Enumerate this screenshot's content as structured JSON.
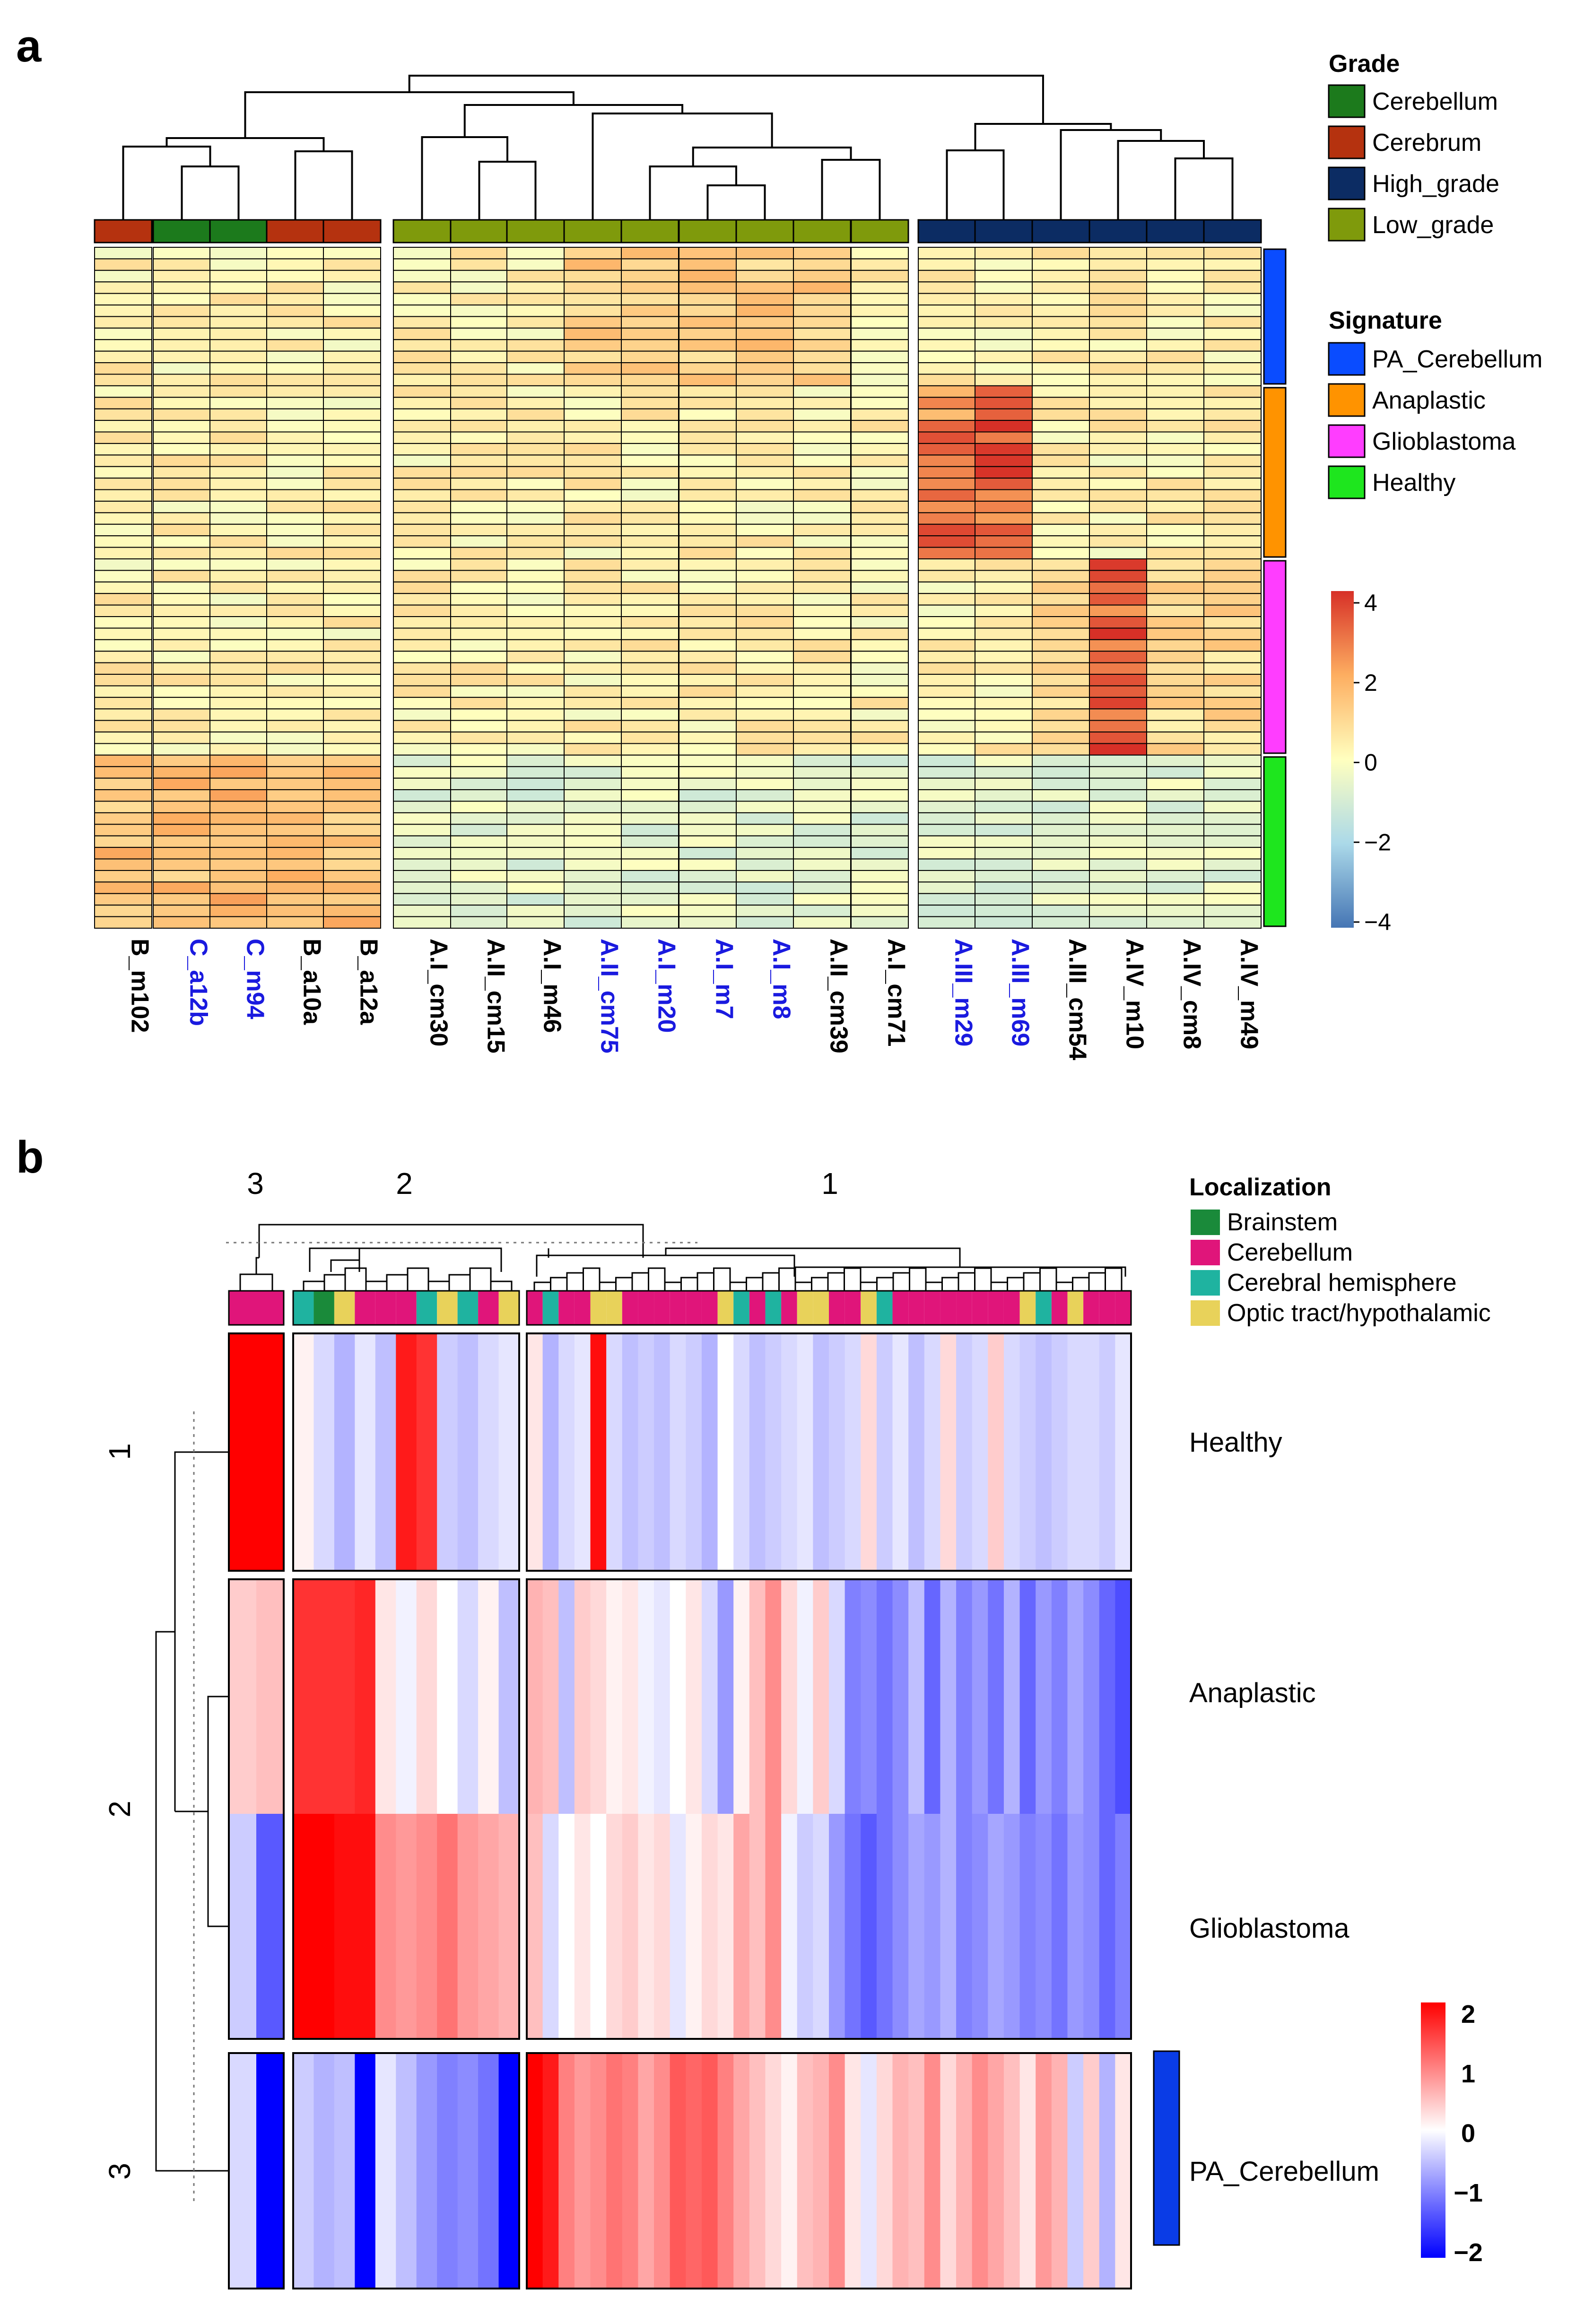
{
  "panel_a": {
    "label": "a",
    "legend": {
      "grade_title": "Grade",
      "grade_items": [
        {
          "name": "Cerebellum",
          "color": "#1c7a1c"
        },
        {
          "name": "Cerebrum",
          "color": "#b5320f"
        },
        {
          "name": "High_grade",
          "color": "#0c2c63"
        },
        {
          "name": "Low_grade",
          "color": "#7f9a0c"
        }
      ],
      "signature_title": "Signature",
      "signature_items": [
        {
          "name": "PA_Cerebellum",
          "color": "#0a4cff"
        },
        {
          "name": "Anaplastic",
          "color": "#ff9300"
        },
        {
          "name": "Glioblastoma",
          "color": "#ff3dff"
        },
        {
          "name": "Healthy",
          "color": "#1ee61e"
        }
      ]
    },
    "scale_ticks": [
      "4",
      "2",
      "0",
      "−2",
      "−4"
    ]
  },
  "panel_b": {
    "label": "b",
    "col_cluster_labels": [
      "3",
      "2",
      "1"
    ],
    "row_cluster_labels": [
      "1",
      "2",
      "3"
    ],
    "legend": {
      "title": "Localization",
      "items": [
        {
          "name": "Brainstem",
          "color": "#1a8a3a"
        },
        {
          "name": "Cerebellum",
          "color": "#e0157a"
        },
        {
          "name": "Cerebral hemisphere",
          "color": "#1fb3a0"
        },
        {
          "name": "Optic tract/hypothalamic",
          "color": "#e8d25a"
        }
      ]
    },
    "scale_ticks": [
      "2",
      "1",
      "0",
      "−1",
      "−2"
    ]
  },
  "chart_data": [
    {
      "type": "heatmap",
      "title": "",
      "columns": [
        "B_m102",
        "C_a12b",
        "C_m94",
        "B_a10a",
        "B_a12a",
        "A.I_cm30",
        "A.II_cm15",
        "A.I_m46",
        "A.II_cm75",
        "A.I_m20",
        "A.I_m7",
        "A.I_m8",
        "A.II_cm39",
        "A.I_cm71",
        "A.III_m29",
        "A.III_m69",
        "A.III_cm54",
        "A.IV_m10",
        "A.IV_cm8",
        "A.IV_m49"
      ],
      "column_label_colors": [
        "#000000",
        "#1a1adf",
        "#1a1adf",
        "#000000",
        "#000000",
        "#000000",
        "#000000",
        "#000000",
        "#1a1adf",
        "#1a1adf",
        "#1a1adf",
        "#1a1adf",
        "#000000",
        "#000000",
        "#1a1adf",
        "#1a1adf",
        "#000000",
        "#000000",
        "#000000",
        "#000000"
      ],
      "column_grade": [
        "Cerebrum",
        "Cerebellum",
        "Cerebellum",
        "Cerebrum",
        "Cerebrum",
        "Low_grade",
        "Low_grade",
        "Low_grade",
        "Low_grade",
        "Low_grade",
        "Low_grade",
        "Low_grade",
        "Low_grade",
        "Low_grade",
        "High_grade",
        "High_grade",
        "High_grade",
        "High_grade",
        "High_grade",
        "High_grade"
      ],
      "column_groups": [
        5,
        9,
        6
      ],
      "row_signature_blocks": [
        {
          "name": "PA_Cerebellum",
          "rows": 12
        },
        {
          "name": "Anaplastic",
          "rows": 15
        },
        {
          "name": "Glioblastoma",
          "rows": 17
        },
        {
          "name": "Healthy",
          "rows": 15
        }
      ],
      "value_range": [
        -4,
        4
      ],
      "colorscale": [
        "#4575b4",
        "#ffffbf",
        "#d73027"
      ],
      "notes": "approximate expression z-scores read from color"
    },
    {
      "type": "heatmap",
      "title": "",
      "rows": [
        "Healthy",
        "Anaplastic",
        "Glioblastoma",
        "PA_Cerebellum"
      ],
      "row_clusters": [
        1,
        2,
        2,
        3
      ],
      "column_clusters": [
        {
          "label": "3",
          "n": 2
        },
        {
          "label": "2",
          "n": 11
        },
        {
          "label": "1",
          "n": 38
        }
      ],
      "value_range": [
        -2,
        2
      ],
      "colorscale": [
        "#0000ff",
        "#ffffff",
        "#ff0000"
      ],
      "values": [
        [
          2.0,
          2.0,
          0.1,
          -0.3,
          -0.6,
          -0.2,
          -0.5,
          1.8,
          1.6,
          -0.4,
          -0.5,
          -0.3,
          -0.2,
          0.2,
          -0.6,
          -0.3,
          -0.2,
          1.9,
          -0.3,
          -0.5,
          -0.4,
          -0.5,
          -0.3,
          -0.4,
          -0.6,
          0.0,
          -0.3,
          -0.5,
          -0.4,
          -0.3,
          -0.2,
          -0.5,
          -0.4,
          -0.3,
          0.3,
          -0.4,
          -0.2,
          -0.5,
          -0.3,
          0.3,
          -0.4,
          -0.3,
          0.4,
          -0.3,
          -0.4,
          -0.5,
          -0.4,
          -0.3,
          -0.3,
          -0.4,
          -0.2
        ],
        [
          0.4,
          0.5,
          1.6,
          1.6,
          1.6,
          1.7,
          0.2,
          -0.1,
          0.3,
          0.0,
          -0.3,
          0.1,
          -0.5,
          0.6,
          0.5,
          -0.5,
          0.4,
          0.3,
          0.1,
          0.2,
          -0.1,
          -0.2,
          0.0,
          0.2,
          -0.3,
          -0.8,
          0.1,
          0.5,
          0.9,
          0.3,
          -0.1,
          0.4,
          -0.3,
          -1.0,
          -0.9,
          -1.1,
          -0.9,
          -0.5,
          -1.2,
          -0.6,
          -1.0,
          -0.8,
          -1.1,
          -0.6,
          -1.2,
          -0.8,
          -1.0,
          -0.7,
          -0.9,
          -1.2,
          -1.4
        ],
        [
          -0.4,
          -1.3,
          2.0,
          2.0,
          1.9,
          1.9,
          0.9,
          0.8,
          0.9,
          1.1,
          0.8,
          0.7,
          0.6,
          0.5,
          -0.3,
          0.0,
          0.2,
          0.0,
          0.3,
          0.4,
          0.2,
          0.3,
          -0.2,
          0.1,
          0.3,
          0.2,
          0.7,
          0.5,
          0.9,
          -0.1,
          -0.4,
          -0.3,
          -0.8,
          -1.1,
          -1.3,
          -1.1,
          -0.9,
          -0.7,
          -0.8,
          -0.6,
          -1.0,
          -0.9,
          -0.7,
          -0.8,
          -1.0,
          -0.9,
          -1.1,
          -0.8,
          -0.9,
          -1.2,
          -1.0
        ],
        [
          -0.3,
          -2.0,
          -0.4,
          -0.6,
          -0.5,
          -2.0,
          -0.2,
          -0.5,
          -0.8,
          -1.0,
          -0.9,
          -1.1,
          -2.0,
          2.0,
          1.8,
          1.0,
          0.8,
          0.9,
          1.1,
          1.0,
          0.7,
          0.9,
          1.3,
          1.2,
          1.3,
          1.0,
          0.7,
          0.5,
          0.3,
          0.1,
          0.5,
          0.6,
          0.9,
          0.2,
          -0.2,
          0.3,
          0.6,
          0.5,
          0.9,
          0.3,
          0.6,
          0.9,
          0.7,
          0.5,
          0.2,
          0.8,
          0.6,
          -0.4,
          0.4,
          -0.6,
          0.2
        ]
      ]
    }
  ]
}
